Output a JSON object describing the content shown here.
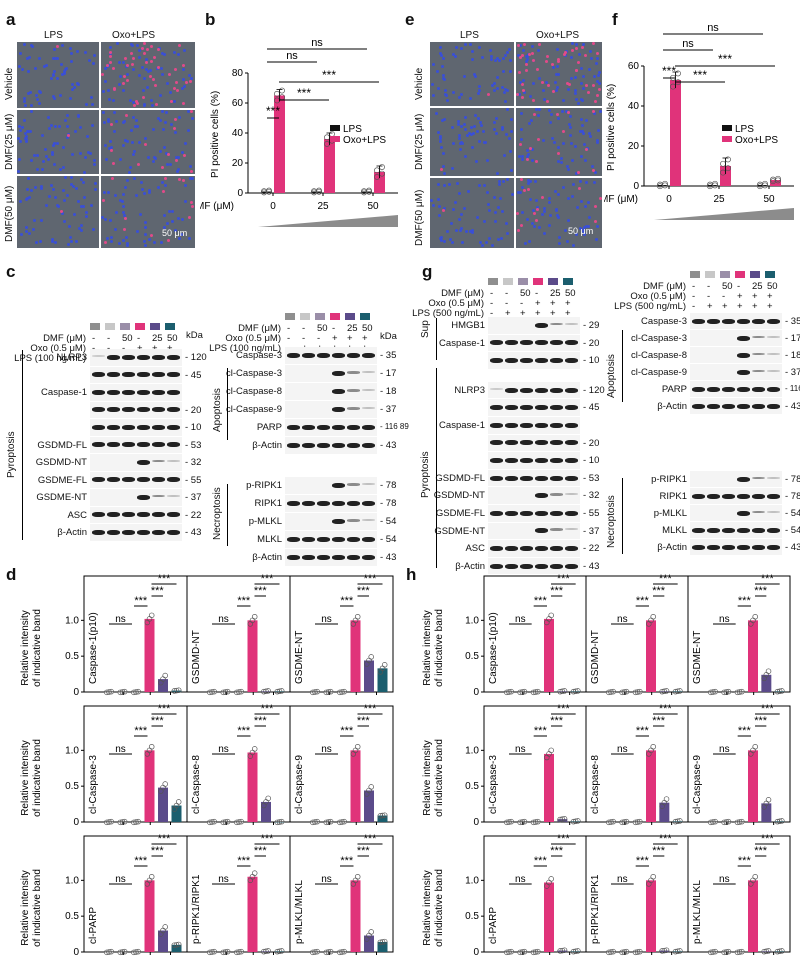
{
  "panel_letters": {
    "a": "a",
    "b": "b",
    "c": "c",
    "d": "d",
    "e": "e",
    "f": "f",
    "g": "g",
    "h": "h"
  },
  "micro": {
    "cols": [
      "LPS",
      "Oxo+LPS"
    ],
    "rows": [
      "Vehicle",
      "DMF(25 μM)",
      "DMF(50 μM)"
    ],
    "scale": "50 μm"
  },
  "colors": {
    "lps": "#111111",
    "oxo": "#e0337a",
    "dmf25": "#5b4b8a",
    "dmf50": "#1b5e6e",
    "grey": "#8a8a8a",
    "chip_colors": [
      "#8f8f8f",
      "#c7c7c7",
      "#9a8ea8",
      "#e0337a",
      "#5b4b8a",
      "#1b5e6e"
    ]
  },
  "conditions": {
    "dmf_label": "DMF (μM)",
    "dmf_vals": [
      "-",
      "-",
      "50",
      "-",
      "25",
      "50"
    ],
    "oxo_label": "Oxo (0.5 μM)",
    "oxo_vals": [
      "-",
      "-",
      "-",
      "+",
      "+",
      "+"
    ],
    "lps_label_c": "LPS (100 ng/mL)",
    "lps_label_g": "LPS (500 ng/mL)",
    "lps_vals": [
      "-",
      "+",
      "+",
      "+",
      "+",
      "+"
    ],
    "kda": "kDa"
  },
  "blots_c_left": {
    "group": "Pyroptosis",
    "rows": [
      {
        "name": "NLRP3",
        "kda": "120"
      },
      {
        "name": "",
        "kda": "45"
      },
      {
        "name": "Caspase-1",
        "kda": ""
      },
      {
        "name": "",
        "kda": "20"
      },
      {
        "name": "",
        "kda": "10"
      },
      {
        "name": "GSDMD-FL",
        "kda": "53"
      },
      {
        "name": "GSDMD-NT",
        "kda": "32"
      },
      {
        "name": "GSDME-FL",
        "kda": "55"
      },
      {
        "name": "GSDME-NT",
        "kda": "37"
      },
      {
        "name": "ASC",
        "kda": "22"
      },
      {
        "name": "β-Actin",
        "kda": "43"
      }
    ]
  },
  "blots_c_right": {
    "group_apoptosis": "Apoptosis",
    "group_necroptosis": "Necroptosis",
    "rows": [
      {
        "name": "Caspase-3",
        "kda": "35"
      },
      {
        "name": "cl-Caspase-3",
        "kda": "17"
      },
      {
        "name": "cl-Caspase-8",
        "kda": "18"
      },
      {
        "name": "cl-Caspase-9",
        "kda": "37"
      },
      {
        "name": "PARP",
        "kda": "116\n89"
      },
      {
        "name": "β-Actin",
        "kda": "43"
      },
      {
        "name": "p-RIPK1",
        "kda": "78"
      },
      {
        "name": "RIPK1",
        "kda": "78"
      },
      {
        "name": "p-MLKL",
        "kda": "54"
      },
      {
        "name": "MLKL",
        "kda": "54"
      },
      {
        "name": "β-Actin",
        "kda": "43"
      }
    ]
  },
  "blots_g_left": {
    "group_sup": "Sup",
    "group": "Pyroptosis",
    "rows": [
      {
        "name": "HMGB1",
        "kda": "29"
      },
      {
        "name": "Caspase-1",
        "kda": "20"
      },
      {
        "name": "",
        "kda": "10"
      },
      {
        "name": "NLRP3",
        "kda": "120"
      },
      {
        "name": "",
        "kda": "45"
      },
      {
        "name": "Caspase-1",
        "kda": ""
      },
      {
        "name": "",
        "kda": "20"
      },
      {
        "name": "",
        "kda": "10"
      },
      {
        "name": "GSDMD-FL",
        "kda": "53"
      },
      {
        "name": "GSDMD-NT",
        "kda": "32"
      },
      {
        "name": "GSDME-FL",
        "kda": "55"
      },
      {
        "name": "GSDME-NT",
        "kda": "37"
      },
      {
        "name": "ASC",
        "kda": "22"
      },
      {
        "name": "β-Actin",
        "kda": "43"
      }
    ]
  },
  "blots_g_right": {
    "group_apoptosis": "Apoptosis",
    "group_necroptosis": "Necroptosis",
    "rows": [
      {
        "name": "Caspase-3",
        "kda": "35"
      },
      {
        "name": "cl-Caspase-3",
        "kda": "17"
      },
      {
        "name": "cl-Caspase-8",
        "kda": "18"
      },
      {
        "name": "cl-Caspase-9",
        "kda": "37"
      },
      {
        "name": "PARP",
        "kda": "116\n89"
      },
      {
        "name": "β-Actin",
        "kda": "43"
      },
      {
        "name": "p-RIPK1",
        "kda": "78"
      },
      {
        "name": "RIPK1",
        "kda": "78"
      },
      {
        "name": "p-MLKL",
        "kda": "54"
      },
      {
        "name": "MLKL",
        "kda": "54"
      },
      {
        "name": "β-Actin",
        "kda": "43"
      }
    ]
  },
  "chart_data": [
    {
      "id": "b",
      "type": "bar",
      "ylabel": "PI positive cells (%)",
      "xlabel": "DMF (μM)",
      "categories": [
        "0",
        "25",
        "50"
      ],
      "series": [
        {
          "name": "LPS",
          "values": [
            1,
            1,
            1
          ]
        },
        {
          "name": "Oxo+LPS",
          "values": [
            65,
            36,
            14
          ]
        }
      ],
      "ylim": [
        0,
        80
      ],
      "yticks": [
        0,
        20,
        40,
        60,
        80
      ],
      "significance": [
        "***",
        "***",
        "***",
        "ns",
        "ns"
      ]
    },
    {
      "id": "f",
      "type": "bar",
      "ylabel": "PI positive cells (%)",
      "xlabel": "DMF (μM)",
      "categories": [
        "0",
        "25",
        "50"
      ],
      "series": [
        {
          "name": "LPS",
          "values": [
            0.5,
            0.5,
            0.5
          ]
        },
        {
          "name": "Oxo+LPS",
          "values": [
            53,
            10,
            3
          ]
        }
      ],
      "ylim": [
        0,
        60
      ],
      "yticks": [
        0,
        20,
        40,
        60
      ],
      "significance": [
        "***",
        "***",
        "***",
        "ns",
        "ns"
      ]
    },
    {
      "id": "d",
      "type": "bar",
      "ylabel": "Relative intensity\nof indicative band",
      "yticks": [
        "0",
        "0.5",
        "1.0"
      ],
      "panels": [
        {
          "label": "Caspase-1(p10)",
          "values": [
            0,
            0,
            0,
            1.02,
            0.18,
            0.02
          ]
        },
        {
          "label": "GSDMD-NT",
          "values": [
            0,
            0,
            0,
            1.0,
            0.01,
            0.01
          ]
        },
        {
          "label": "GSDME-NT",
          "values": [
            0,
            0,
            0,
            1.0,
            0.44,
            0.33
          ]
        },
        {
          "label": "cl-Caspase-3",
          "values": [
            0,
            0,
            0,
            1.0,
            0.48,
            0.23
          ]
        },
        {
          "label": "cl-Caspase-8",
          "values": [
            0,
            0,
            0,
            0.97,
            0.28,
            0.0
          ]
        },
        {
          "label": "cl-Caspase-9",
          "values": [
            0,
            0,
            0,
            1.0,
            0.44,
            0.09
          ]
        },
        {
          "label": "cl-PARP",
          "values": [
            0,
            0,
            0,
            1.0,
            0.3,
            0.1
          ]
        },
        {
          "label": "p-RIPK1/RIPK1",
          "values": [
            0,
            0,
            0,
            1.05,
            0.01,
            0.01
          ]
        },
        {
          "label": "p-MLKL/MLKL",
          "values": [
            0,
            0,
            0,
            1.0,
            0.23,
            0.14
          ]
        }
      ],
      "significance": [
        "***",
        "***",
        "***",
        "ns"
      ]
    },
    {
      "id": "h",
      "type": "bar",
      "ylabel": "Relative intensity\nof indicative band",
      "yticks": [
        "0",
        "0.5",
        "1.0"
      ],
      "panels": [
        {
          "label": "Caspase-1(p10)",
          "values": [
            0,
            0,
            0,
            1.02,
            0.01,
            0.01
          ]
        },
        {
          "label": "GSDMD-NT",
          "values": [
            0,
            0,
            0,
            1.0,
            0.01,
            0.01
          ]
        },
        {
          "label": "GSDME-NT",
          "values": [
            0,
            0,
            0,
            1.0,
            0.24,
            0.01
          ]
        },
        {
          "label": "cl-Caspase-3",
          "values": [
            0,
            0,
            0,
            0.95,
            0.04,
            0.01
          ]
        },
        {
          "label": "cl-Caspase-8",
          "values": [
            0,
            0,
            0,
            1.0,
            0.27,
            0.01
          ]
        },
        {
          "label": "cl-Caspase-9",
          "values": [
            0,
            0,
            0,
            1.0,
            0.26,
            0.01
          ]
        },
        {
          "label": "cl-PARP",
          "values": [
            0,
            0,
            0,
            0.97,
            0.02,
            0.01
          ]
        },
        {
          "label": "p-RIPK1/RIPK1",
          "values": [
            0,
            0,
            0,
            1.0,
            0.02,
            0.01
          ]
        },
        {
          "label": "p-MLKL/MLKL",
          "values": [
            0,
            0,
            0,
            1.0,
            0.01,
            0.01
          ]
        }
      ],
      "significance": [
        "***",
        "***",
        "***",
        "ns"
      ]
    }
  ]
}
